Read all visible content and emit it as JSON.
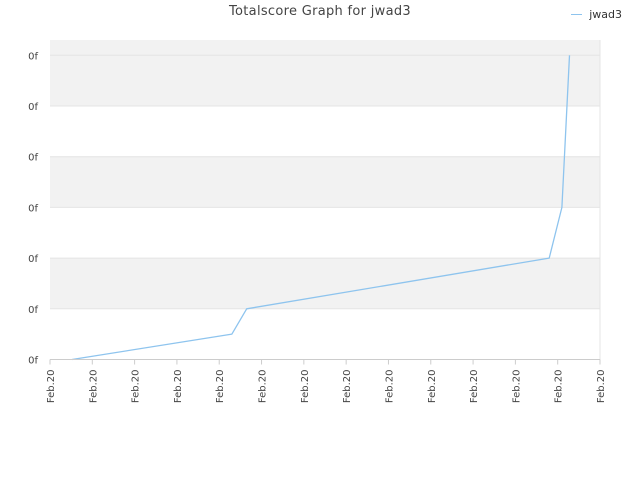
{
  "chart_data": {
    "type": "line",
    "title": "Totalscore Graph for jwad3",
    "xlabel": "",
    "ylabel": "",
    "legend": {
      "position": "top-right"
    },
    "grid": true,
    "band_colors": [
      "#f2f2f2",
      "#ffffff"
    ],
    "x_tick_labels": [
      "Feb.20",
      "Feb.20",
      "Feb.20",
      "Feb.20",
      "Feb.20",
      "Feb.20",
      "Feb.20",
      "Feb.20",
      "Feb.20",
      "Feb.20",
      "Feb.20",
      "Feb.20",
      "Feb.20",
      "Feb.20"
    ],
    "y_tick_labels": [
      "0f",
      "0f",
      "0f",
      "0f",
      "0f",
      "0f",
      "0f"
    ],
    "xlim": [
      0,
      13
    ],
    "ylim": [
      0,
      6.1
    ],
    "series": [
      {
        "name": "jwad3",
        "color": "#8ec4ee",
        "x": [
          0.52,
          4.3,
          4.65,
          11.8,
          12.1,
          12.28
        ],
        "y": [
          0.0,
          0.5,
          1.0,
          2.0,
          3.0,
          6.0
        ]
      }
    ]
  }
}
